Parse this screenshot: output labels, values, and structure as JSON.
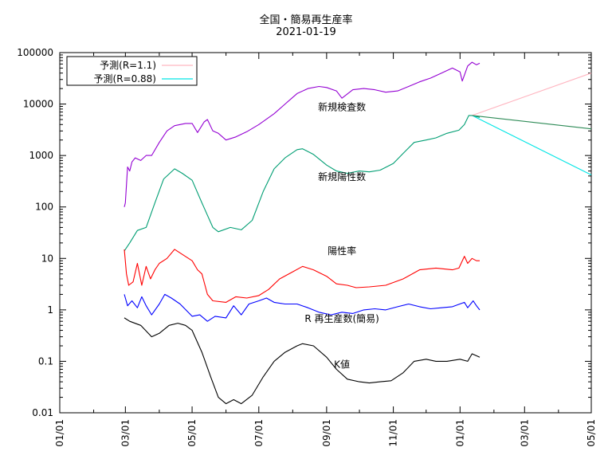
{
  "chart_data": {
    "type": "line",
    "title": "全国・簡易再生産率",
    "subtitle": "2021-01-19",
    "y_scale": "log",
    "ylim": [
      0.01,
      100000
    ],
    "y_ticks": [
      "100000",
      "10000",
      "1000",
      "100",
      "10",
      "1",
      "0.1",
      "0.01"
    ],
    "xlim": [
      "2020-01-01",
      "2021-05-01"
    ],
    "x_ticks": [
      "01/01",
      "03/01",
      "05/01",
      "07/01",
      "09/01",
      "11/01",
      "01/01",
      "03/01",
      "05/01"
    ],
    "grid": false,
    "legend_position": "top-left",
    "legend": [
      {
        "label": "予測(R=1.1)",
        "color": "#ffb6c1"
      },
      {
        "label": "予測(R=0.88)",
        "color": "#00e5e5"
      }
    ],
    "annotations": [
      {
        "text": "新規検査数",
        "x": "2020-09-15",
        "y": 7500
      },
      {
        "text": "新規陽性数",
        "x": "2020-09-15",
        "y": 330
      },
      {
        "text": "陽性率",
        "x": "2020-09-15",
        "y": 12
      },
      {
        "text": "R 再生産数(簡易)",
        "x": "2020-09-15",
        "y": 0.58
      },
      {
        "text": "K値",
        "x": "2020-09-15",
        "y": 0.075
      }
    ],
    "series": [
      {
        "color": "#9400d3",
        "points": [
          [
            "2020-02-29",
            100
          ],
          [
            "2020-03-01",
            120
          ],
          [
            "2020-03-03",
            600
          ],
          [
            "2020-03-05",
            500
          ],
          [
            "2020-03-07",
            750
          ],
          [
            "2020-03-10",
            900
          ],
          [
            "2020-03-15",
            800
          ],
          [
            "2020-03-20",
            1000
          ],
          [
            "2020-03-25",
            1000
          ],
          [
            "2020-04-01",
            1800
          ],
          [
            "2020-04-08",
            3000
          ],
          [
            "2020-04-15",
            3800
          ],
          [
            "2020-04-25",
            4200
          ],
          [
            "2020-05-01",
            4200
          ],
          [
            "2020-05-06",
            2800
          ],
          [
            "2020-05-12",
            4500
          ],
          [
            "2020-05-15",
            5000
          ],
          [
            "2020-05-20",
            3000
          ],
          [
            "2020-05-25",
            2700
          ],
          [
            "2020-06-01",
            2000
          ],
          [
            "2020-06-10",
            2300
          ],
          [
            "2020-06-20",
            2900
          ],
          [
            "2020-07-01",
            4000
          ],
          [
            "2020-07-15",
            6500
          ],
          [
            "2020-07-25",
            10000
          ],
          [
            "2020-08-05",
            16000
          ],
          [
            "2020-08-15",
            20000
          ],
          [
            "2020-08-25",
            22000
          ],
          [
            "2020-09-01",
            21000
          ],
          [
            "2020-09-10",
            18000
          ],
          [
            "2020-09-15",
            13000
          ],
          [
            "2020-09-25",
            19000
          ],
          [
            "2020-10-05",
            20000
          ],
          [
            "2020-10-15",
            19000
          ],
          [
            "2020-10-25",
            17000
          ],
          [
            "2020-11-05",
            18000
          ],
          [
            "2020-11-15",
            22000
          ],
          [
            "2020-11-25",
            27000
          ],
          [
            "2020-12-05",
            32000
          ],
          [
            "2020-12-15",
            40000
          ],
          [
            "2020-12-25",
            50000
          ],
          [
            "2021-01-01",
            42000
          ],
          [
            "2021-01-03",
            28000
          ],
          [
            "2021-01-08",
            55000
          ],
          [
            "2021-01-12",
            65000
          ],
          [
            "2021-01-16",
            58000
          ],
          [
            "2021-01-19",
            62000
          ]
        ]
      },
      {
        "color": "#009e73",
        "points": [
          [
            "2020-02-29",
            14
          ],
          [
            "2020-03-05",
            20
          ],
          [
            "2020-03-12",
            35
          ],
          [
            "2020-03-20",
            40
          ],
          [
            "2020-03-28",
            120
          ],
          [
            "2020-04-05",
            350
          ],
          [
            "2020-04-15",
            550
          ],
          [
            "2020-04-22",
            450
          ],
          [
            "2020-05-01",
            330
          ],
          [
            "2020-05-10",
            120
          ],
          [
            "2020-05-20",
            40
          ],
          [
            "2020-05-25",
            33
          ],
          [
            "2020-06-05",
            40
          ],
          [
            "2020-06-15",
            36
          ],
          [
            "2020-06-25",
            55
          ],
          [
            "2020-07-05",
            200
          ],
          [
            "2020-07-15",
            550
          ],
          [
            "2020-07-25",
            900
          ],
          [
            "2020-08-05",
            1300
          ],
          [
            "2020-08-10",
            1350
          ],
          [
            "2020-08-20",
            1050
          ],
          [
            "2020-09-01",
            650
          ],
          [
            "2020-09-10",
            500
          ],
          [
            "2020-09-20",
            450
          ],
          [
            "2020-10-01",
            500
          ],
          [
            "2020-10-10",
            480
          ],
          [
            "2020-10-20",
            520
          ],
          [
            "2020-11-01",
            700
          ],
          [
            "2020-11-10",
            1100
          ],
          [
            "2020-11-20",
            1800
          ],
          [
            "2020-12-01",
            2000
          ],
          [
            "2020-12-10",
            2200
          ],
          [
            "2020-12-20",
            2700
          ],
          [
            "2020-12-31",
            3100
          ],
          [
            "2021-01-05",
            4000
          ],
          [
            "2021-01-09",
            6000
          ],
          [
            "2021-01-12",
            6000
          ],
          [
            "2021-01-19",
            5500
          ]
        ]
      },
      {
        "color": "#ff0000",
        "points": [
          [
            "2020-02-29",
            15
          ],
          [
            "2020-03-02",
            5
          ],
          [
            "2020-03-04",
            3
          ],
          [
            "2020-03-08",
            3.5
          ],
          [
            "2020-03-12",
            8
          ],
          [
            "2020-03-16",
            3
          ],
          [
            "2020-03-20",
            7
          ],
          [
            "2020-03-24",
            4
          ],
          [
            "2020-03-28",
            6
          ],
          [
            "2020-04-01",
            8
          ],
          [
            "2020-04-08",
            10
          ],
          [
            "2020-04-15",
            15
          ],
          [
            "2020-04-22",
            12
          ],
          [
            "2020-05-01",
            9
          ],
          [
            "2020-05-06",
            6
          ],
          [
            "2020-05-10",
            5
          ],
          [
            "2020-05-15",
            2
          ],
          [
            "2020-05-20",
            1.5
          ],
          [
            "2020-06-01",
            1.4
          ],
          [
            "2020-06-10",
            1.8
          ],
          [
            "2020-06-20",
            1.7
          ],
          [
            "2020-07-01",
            1.9
          ],
          [
            "2020-07-10",
            2.5
          ],
          [
            "2020-07-20",
            4
          ],
          [
            "2020-08-01",
            5.5
          ],
          [
            "2020-08-10",
            7
          ],
          [
            "2020-08-20",
            6
          ],
          [
            "2020-09-01",
            4.5
          ],
          [
            "2020-09-10",
            3.2
          ],
          [
            "2020-09-20",
            3
          ],
          [
            "2020-09-28",
            2.7
          ],
          [
            "2020-10-10",
            2.8
          ],
          [
            "2020-10-25",
            3
          ],
          [
            "2020-11-10",
            4
          ],
          [
            "2020-11-25",
            6
          ],
          [
            "2020-12-10",
            6.5
          ],
          [
            "2020-12-25",
            6
          ],
          [
            "2020-12-31",
            6.5
          ],
          [
            "2021-01-05",
            11
          ],
          [
            "2021-01-08",
            8
          ],
          [
            "2021-01-12",
            10
          ],
          [
            "2021-01-16",
            9
          ],
          [
            "2021-01-19",
            9
          ]
        ]
      },
      {
        "color": "#0000ff",
        "points": [
          [
            "2020-02-29",
            2
          ],
          [
            "2020-03-03",
            1.2
          ],
          [
            "2020-03-07",
            1.5
          ],
          [
            "2020-03-12",
            1.1
          ],
          [
            "2020-03-16",
            1.8
          ],
          [
            "2020-03-20",
            1.2
          ],
          [
            "2020-03-25",
            0.8
          ],
          [
            "2020-04-01",
            1.3
          ],
          [
            "2020-04-06",
            2
          ],
          [
            "2020-04-12",
            1.7
          ],
          [
            "2020-04-20",
            1.3
          ],
          [
            "2020-05-01",
            0.75
          ],
          [
            "2020-05-08",
            0.8
          ],
          [
            "2020-05-15",
            0.6
          ],
          [
            "2020-05-22",
            0.75
          ],
          [
            "2020-06-01",
            0.7
          ],
          [
            "2020-06-08",
            1.2
          ],
          [
            "2020-06-15",
            0.8
          ],
          [
            "2020-06-22",
            1.3
          ],
          [
            "2020-07-01",
            1.5
          ],
          [
            "2020-07-08",
            1.7
          ],
          [
            "2020-07-15",
            1.4
          ],
          [
            "2020-07-25",
            1.3
          ],
          [
            "2020-08-05",
            1.3
          ],
          [
            "2020-08-15",
            1.1
          ],
          [
            "2020-08-25",
            0.9
          ],
          [
            "2020-09-05",
            0.8
          ],
          [
            "2020-09-15",
            0.9
          ],
          [
            "2020-09-25",
            0.85
          ],
          [
            "2020-10-05",
            1
          ],
          [
            "2020-10-15",
            1.05
          ],
          [
            "2020-10-25",
            1
          ],
          [
            "2020-11-05",
            1.15
          ],
          [
            "2020-11-15",
            1.3
          ],
          [
            "2020-11-25",
            1.15
          ],
          [
            "2020-12-05",
            1.05
          ],
          [
            "2020-12-15",
            1.1
          ],
          [
            "2020-12-25",
            1.15
          ],
          [
            "2021-01-05",
            1.4
          ],
          [
            "2021-01-08",
            1.1
          ],
          [
            "2021-01-13",
            1.5
          ],
          [
            "2021-01-16",
            1.2
          ],
          [
            "2021-01-19",
            1
          ]
        ]
      },
      {
        "color": "#000000",
        "points": [
          [
            "2020-02-29",
            0.7
          ],
          [
            "2020-03-05",
            0.6
          ],
          [
            "2020-03-15",
            0.5
          ],
          [
            "2020-03-25",
            0.3
          ],
          [
            "2020-04-01",
            0.35
          ],
          [
            "2020-04-10",
            0.5
          ],
          [
            "2020-04-18",
            0.55
          ],
          [
            "2020-04-25",
            0.5
          ],
          [
            "2020-05-01",
            0.4
          ],
          [
            "2020-05-10",
            0.15
          ],
          [
            "2020-05-18",
            0.05
          ],
          [
            "2020-05-25",
            0.02
          ],
          [
            "2020-06-01",
            0.015
          ],
          [
            "2020-06-08",
            0.018
          ],
          [
            "2020-06-15",
            0.015
          ],
          [
            "2020-06-25",
            0.022
          ],
          [
            "2020-07-05",
            0.05
          ],
          [
            "2020-07-15",
            0.1
          ],
          [
            "2020-07-25",
            0.15
          ],
          [
            "2020-08-05",
            0.2
          ],
          [
            "2020-08-10",
            0.22
          ],
          [
            "2020-08-20",
            0.2
          ],
          [
            "2020-09-01",
            0.12
          ],
          [
            "2020-09-10",
            0.07
          ],
          [
            "2020-09-20",
            0.045
          ],
          [
            "2020-10-01",
            0.04
          ],
          [
            "2020-10-10",
            0.038
          ],
          [
            "2020-10-20",
            0.04
          ],
          [
            "2020-10-30",
            0.042
          ],
          [
            "2020-11-10",
            0.06
          ],
          [
            "2020-11-20",
            0.1
          ],
          [
            "2020-12-01",
            0.11
          ],
          [
            "2020-12-10",
            0.1
          ],
          [
            "2020-12-20",
            0.1
          ],
          [
            "2021-01-01",
            0.11
          ],
          [
            "2021-01-08",
            0.1
          ],
          [
            "2021-01-12",
            0.14
          ],
          [
            "2021-01-19",
            0.12
          ]
        ]
      },
      {
        "name": "予測(R=1.1)",
        "color": "#ffb6c1",
        "points": [
          [
            "2021-01-12",
            6000
          ],
          [
            "2021-05-01",
            40000
          ]
        ]
      },
      {
        "name": "予測(R=0.88)",
        "color": "#00e5e5",
        "points": [
          [
            "2021-01-12",
            6000
          ],
          [
            "2021-05-01",
            420
          ]
        ]
      },
      {
        "color": "#2e8b57",
        "points": [
          [
            "2021-01-12",
            6000
          ],
          [
            "2021-05-01",
            3300
          ]
        ]
      }
    ]
  }
}
